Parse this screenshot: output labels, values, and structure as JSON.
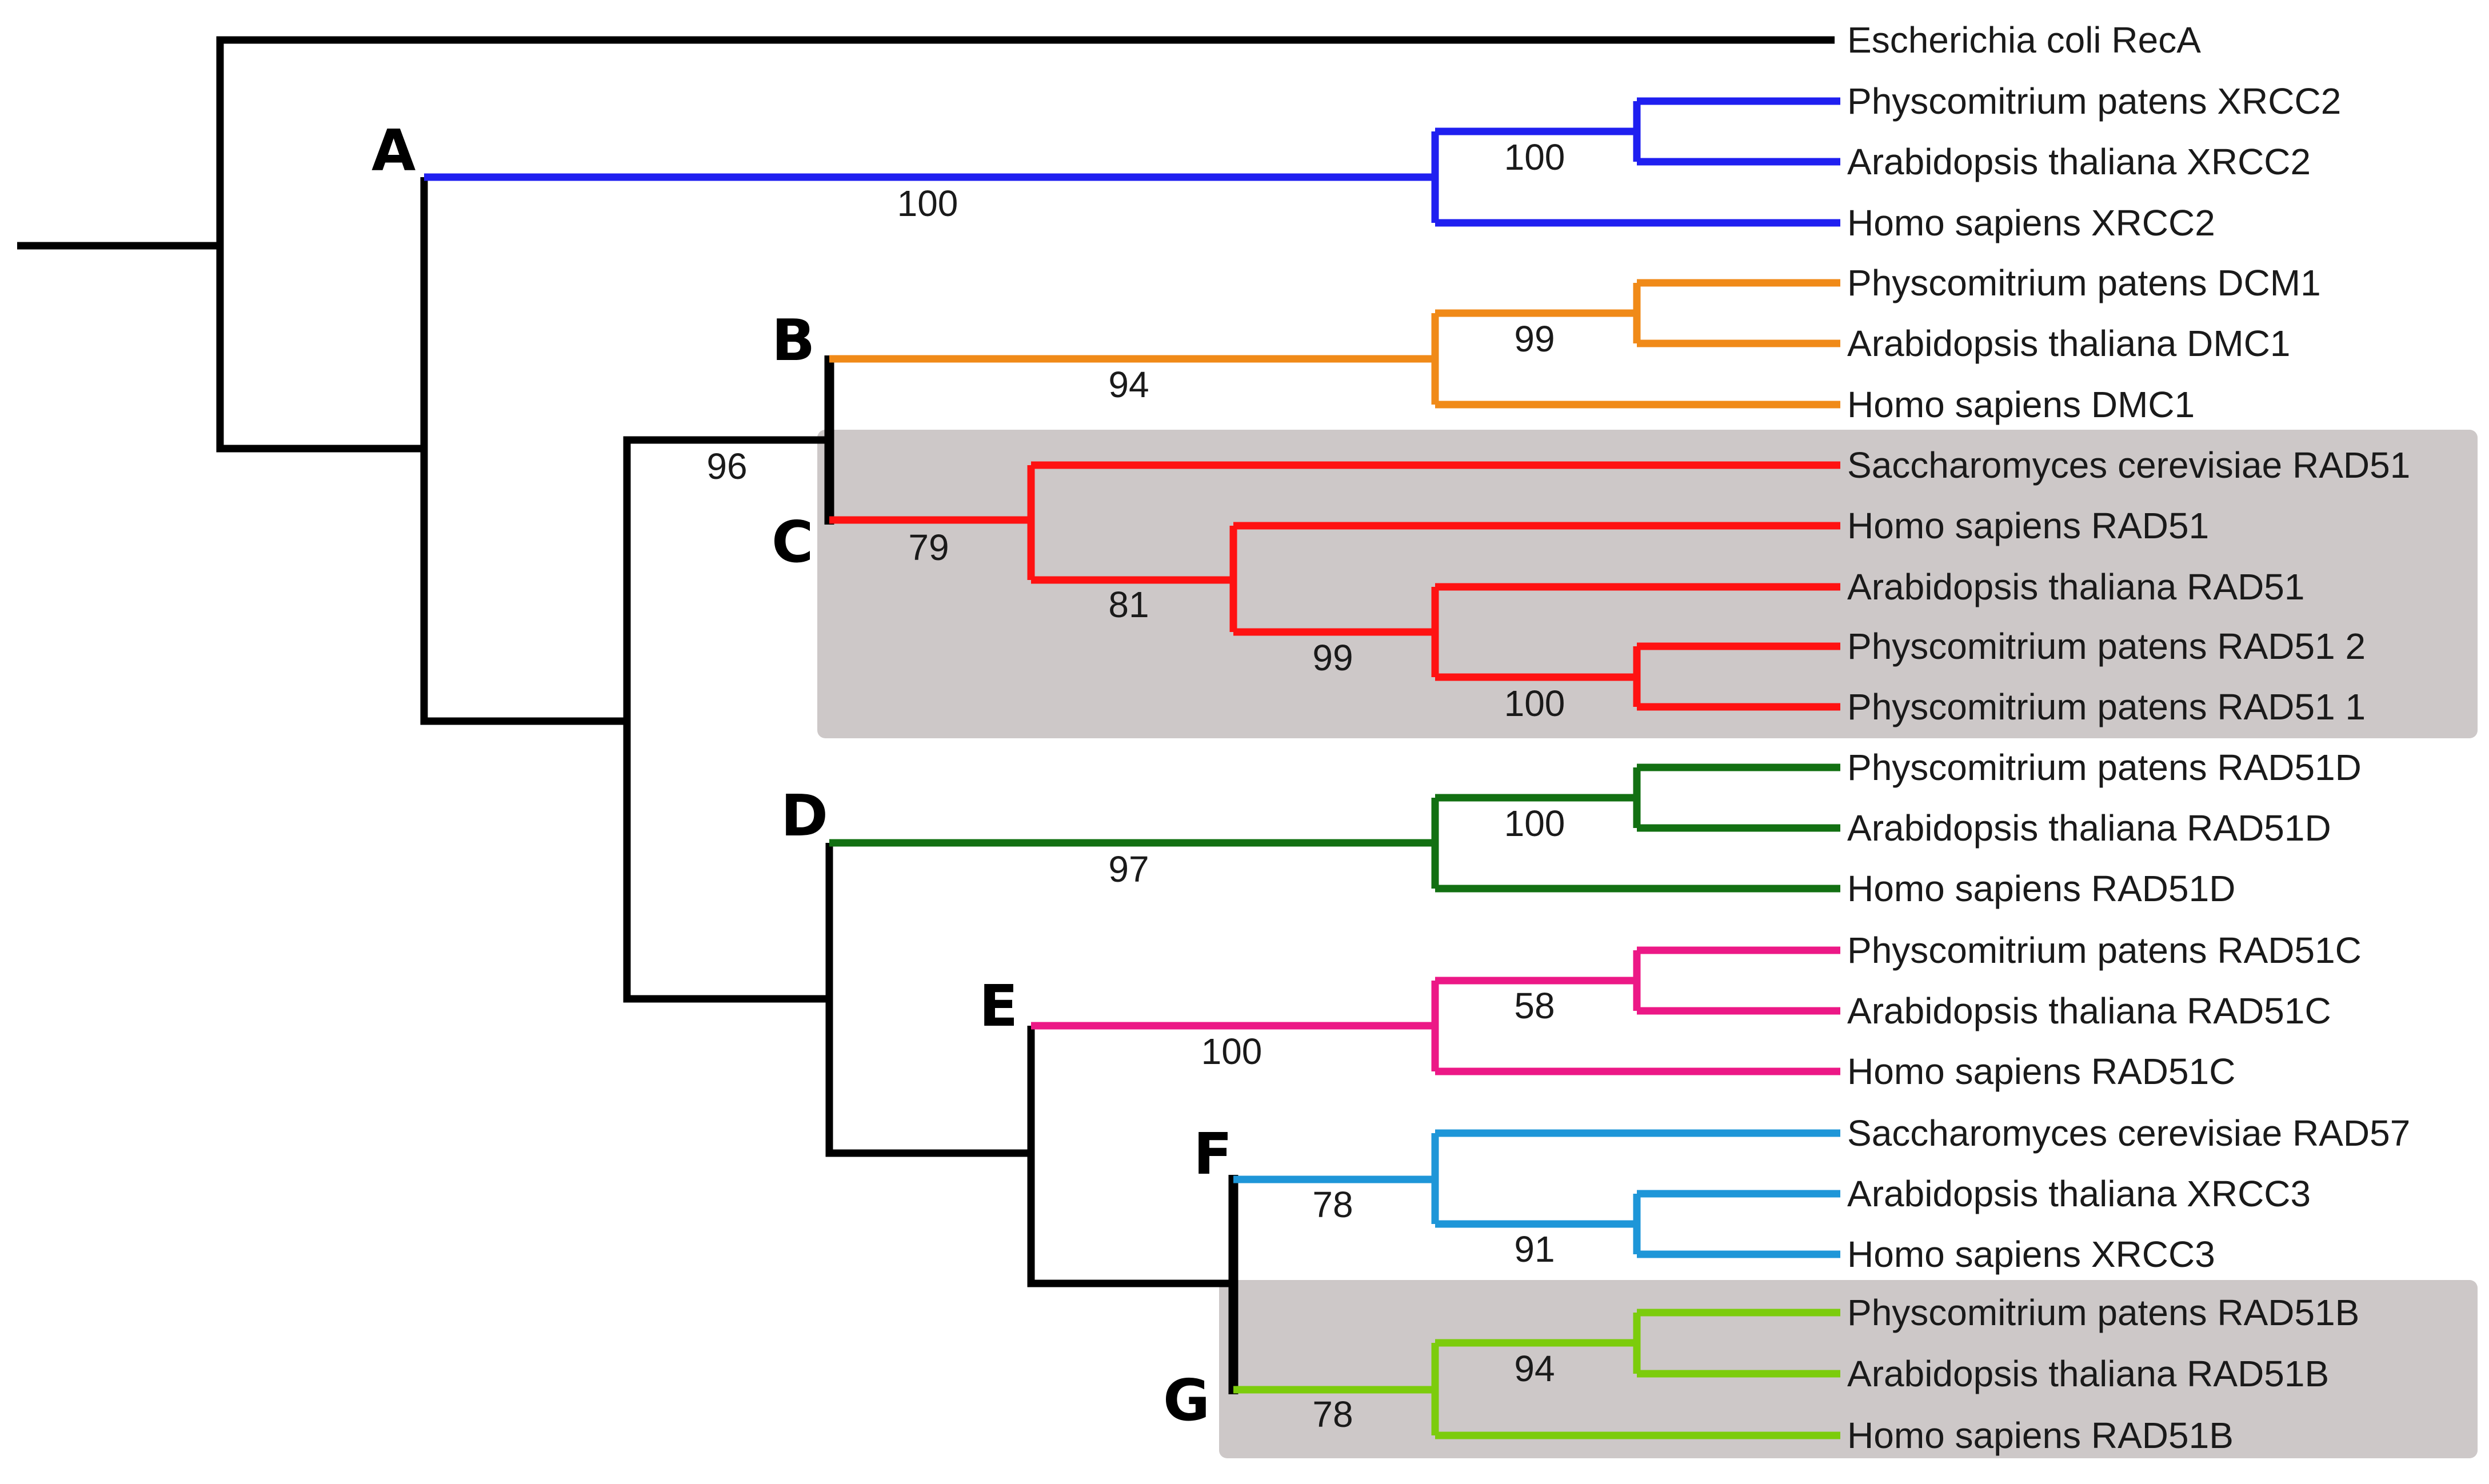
{
  "colors": {
    "root": "#000000",
    "A": "#1f1ff0",
    "B": "#f08a18",
    "C": "#ff1212",
    "D": "#127012",
    "E": "#ec1886",
    "F": "#1e96d8",
    "G": "#7ccc0c",
    "highlight": "#cdc8c8"
  },
  "clade_letters": {
    "A": "A",
    "B": "B",
    "C": "C",
    "D": "D",
    "E": "E",
    "F": "F",
    "G": "G"
  },
  "leaves": [
    "Escherichia coli RecA",
    "Physcomitrium patens XRCC2",
    "Arabidopsis thaliana XRCC2",
    "Homo sapiens XRCC2",
    "Physcomitrium patens DCM1",
    "Arabidopsis thaliana DMC1",
    "Homo sapiens DMC1",
    "Saccharomyces cerevisiae RAD51",
    "Homo sapiens RAD51",
    "Arabidopsis thaliana RAD51",
    "Physcomitrium patens RAD51 2",
    "Physcomitrium patens RAD51 1",
    "Physcomitrium patens RAD51D",
    "Arabidopsis thaliana RAD51D",
    "Homo sapiens RAD51D",
    "Physcomitrium patens RAD51C",
    "Arabidopsis thaliana RAD51C",
    "Homo sapiens RAD51C",
    "Saccharomyces cerevisiae RAD57",
    "Arabidopsis thaliana XRCC3",
    "Homo sapiens XRCC3",
    "Physcomitrium patens RAD51B",
    "Arabidopsis thaliana RAD51B",
    "Homo sapiens RAD51B"
  ],
  "support_values": {
    "A_stem": "100",
    "A_inner": "100",
    "B_stem": "94",
    "B_inner": "99",
    "BC_node": "96",
    "C_stem": "79",
    "C_81": "81",
    "C_99": "99",
    "C_100": "100",
    "D_stem": "97",
    "D_inner": "100",
    "E_stem": "100",
    "E_inner": "58",
    "F_stem": "78",
    "F_inner": "91",
    "G_stem": "78",
    "G_inner": "94"
  }
}
